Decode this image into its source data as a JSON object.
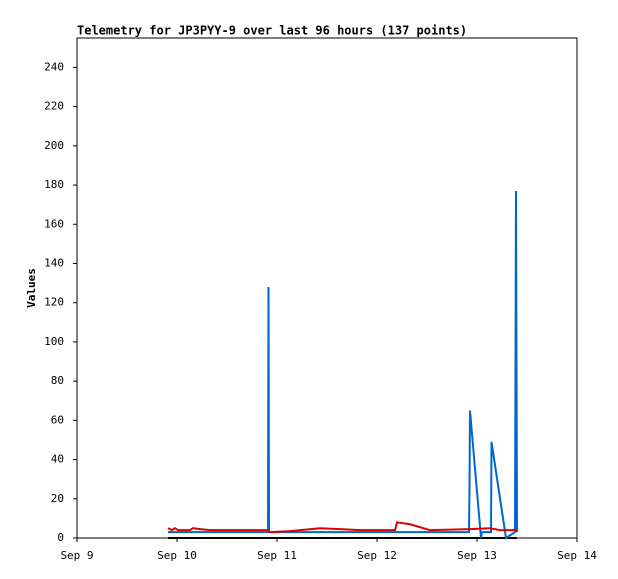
{
  "chart_data": {
    "type": "line",
    "title": "Telemetry for JP3PYY-9 over last 96 hours (137 points)",
    "y_label": "Values",
    "xlim": [
      9,
      14
    ],
    "xticks": [
      {
        "value": 9,
        "label": "Sep 9"
      },
      {
        "value": 10,
        "label": "Sep 10"
      },
      {
        "value": 11,
        "label": "Sep 11"
      },
      {
        "value": 12,
        "label": "Sep 12"
      },
      {
        "value": 13,
        "label": "Sep 13"
      },
      {
        "value": 14,
        "label": "Sep 14"
      }
    ],
    "ylim": [
      0,
      255
    ],
    "yticks": [
      0,
      20,
      40,
      60,
      80,
      100,
      120,
      140,
      160,
      180,
      200,
      220,
      240
    ],
    "grid": false,
    "series": [
      {
        "color": "#000000",
        "x": [
          9.91,
          13.4
        ],
        "values": [
          0,
          0
        ]
      },
      {
        "color": "#0066cc",
        "x": [
          9.91,
          10.91,
          10.915,
          10.92,
          12.92,
          12.925,
          12.93,
          13.04,
          13.05,
          13.14,
          13.145,
          13.29,
          13.38,
          13.385,
          13.39,
          13.4
        ],
        "values": [
          3,
          3,
          128,
          3,
          3,
          25,
          65,
          0,
          3,
          3,
          49,
          0,
          3,
          88,
          177,
          3
        ]
      },
      {
        "color": "#dd0000",
        "x": [
          9.91,
          9.95,
          9.98,
          10.01,
          10.13,
          10.16,
          10.23,
          10.33,
          10.91,
          10.93,
          11.13,
          11.43,
          11.63,
          11.83,
          12.18,
          12.2,
          12.33,
          12.53,
          12.93,
          13.13,
          13.23,
          13.4
        ],
        "values": [
          5,
          4,
          5,
          4,
          4,
          5,
          4.5,
          4,
          4,
          3,
          3.5,
          5,
          4.5,
          4,
          4,
          8,
          7,
          4,
          4.5,
          5,
          4,
          4
        ]
      }
    ]
  }
}
